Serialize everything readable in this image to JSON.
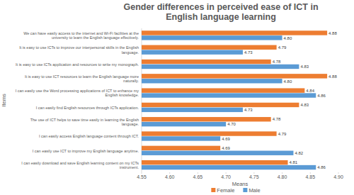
{
  "chart_data": {
    "type": "bar",
    "orientation": "horizontal",
    "title": "Gender differences in perceived ease of ICT in English language learning",
    "xlabel": "Means",
    "ylabel": "Items",
    "categories": [
      "We can have easily access to the internet and Wi-Fi facilities at the university to learn the English language effectively.",
      "It is easy to use ICTs to improve our interpersonal skills in the English language.",
      "It is easy to use ICTs application and resources to write my monograph.",
      "It is easy to use ICT resources to learn the English language more naturally.",
      "I can easily use the Word processing applications of ICT to enhance my English knowledge.",
      "I can easily find English resources through ICTs application.",
      "The use of ICT helps to save time easily in learning the English language.",
      "I can easily access English language content through ICT.",
      "I can easily use ICT to improve my English language anytime.",
      "I can easily download and save English learning content on my ICTs instrument."
    ],
    "series": [
      {
        "name": "Female",
        "color": "#ed7d31",
        "values": [
          4.88,
          4.79,
          4.78,
          4.88,
          4.84,
          4.83,
          4.78,
          4.79,
          4.69,
          4.81
        ],
        "value_labels": [
          "4.88",
          "4.79",
          "4.78",
          "4.88",
          "4.84",
          "4.83",
          "4.78",
          "4.79",
          "4.69",
          "4.81"
        ]
      },
      {
        "name": "Male",
        "color": "#5b9bd5",
        "values": [
          4.8,
          4.73,
          4.83,
          4.8,
          4.86,
          4.73,
          4.7,
          4.69,
          4.82,
          4.86
        ],
        "value_labels": [
          "4.80",
          "4.73",
          "4.83",
          "4.80",
          "4.86",
          "4.73",
          "4.70",
          "4.69",
          "4.82",
          "4.86"
        ]
      }
    ],
    "xlim": [
      4.55,
      4.9
    ],
    "xticks": [
      4.55,
      {
        "value": 4.6,
        "label": "4.60"
      },
      4.65,
      {
        "value": 4.7,
        "label": "4.70"
      },
      4.75,
      {
        "value": 4.8,
        "label": "4.80"
      },
      4.85,
      {
        "value": 4.9,
        "label": "4.90"
      }
    ],
    "data_labels": true,
    "grid": false,
    "legend": "bottom"
  }
}
